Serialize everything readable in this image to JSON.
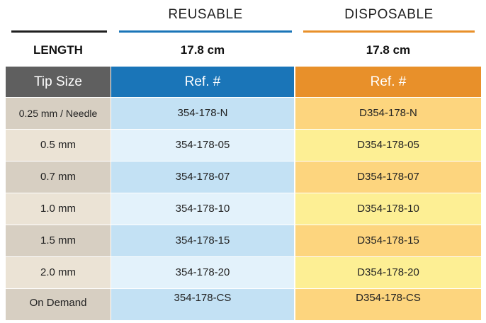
{
  "header": {
    "reusable": "REUSABLE",
    "disposable": "DISPOSABLE"
  },
  "length": {
    "label": "LENGTH",
    "reusable": "17.8 cm",
    "disposable": "17.8 cm"
  },
  "columns": {
    "tip_size": "Tip Size",
    "ref_reusable": "Ref. #",
    "ref_disposable": "Ref. #"
  },
  "rows": [
    {
      "tip": "0.25 mm / Needle",
      "reusable": "354-178-N",
      "disposable": "D354-178-N"
    },
    {
      "tip": "0.5 mm",
      "reusable": "354-178-05",
      "disposable": "D354-178-05"
    },
    {
      "tip": "0.7 mm",
      "reusable": "354-178-07",
      "disposable": "D354-178-07"
    },
    {
      "tip": "1.0 mm",
      "reusable": "354-178-10",
      "disposable": "D354-178-10"
    },
    {
      "tip": "1.5 mm",
      "reusable": "354-178-15",
      "disposable": "D354-178-15"
    },
    {
      "tip": "2.0 mm",
      "reusable": "354-178-20",
      "disposable": "D354-178-20"
    },
    {
      "tip": "On Demand",
      "reusable": "354-178-CS",
      "disposable": "D354-178-CS"
    }
  ],
  "colors": {
    "tip_header": "#5f5f5f",
    "reusable_header": "#1a75b8",
    "disposable_header": "#e8902a",
    "tip_dark": "#d7cfc2",
    "tip_light": "#ebe3d5",
    "reusable_dark": "#c3e1f4",
    "reusable_light": "#e3f2fb",
    "disposable_dark": "#fdd57e",
    "disposable_light": "#fdef94"
  }
}
